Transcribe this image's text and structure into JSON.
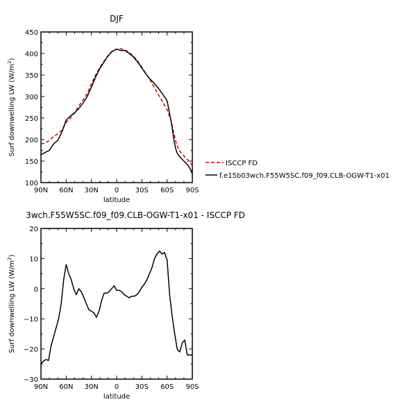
{
  "chart_data": [
    {
      "type": "line",
      "title": "DJF",
      "xlabel": "latitude",
      "ylabel_main": "Surf downwelling LW (W/m",
      "ylabel_sup": "2",
      "ylabel_tail": ")",
      "xlim": [
        -90,
        90
      ],
      "ylim": [
        100,
        450
      ],
      "xticks": [
        -90,
        -60,
        -30,
        0,
        30,
        60,
        90
      ],
      "xtick_labels": [
        "90N",
        "60N",
        "30N",
        "0",
        "30S",
        "60S",
        "90S"
      ],
      "yticks": [
        100,
        150,
        200,
        250,
        300,
        350,
        400,
        450
      ],
      "ytick_labels": [
        "100",
        "150",
        "200",
        "250",
        "300",
        "350",
        "400",
        "450"
      ],
      "legend_position": "right",
      "series": [
        {
          "name": "ISCCP FD",
          "color": "#cc0000",
          "dash": "dashed",
          "x": [
            -90,
            -85,
            -80,
            -75,
            -70,
            -65,
            -60,
            -55,
            -50,
            -45,
            -40,
            -35,
            -30,
            -25,
            -20,
            -15,
            -10,
            -5,
            0,
            5,
            10,
            15,
            20,
            25,
            30,
            35,
            40,
            45,
            50,
            55,
            60,
            65,
            68,
            70,
            72,
            75,
            80,
            85,
            88,
            90
          ],
          "y": [
            190,
            192,
            198,
            207,
            213,
            222,
            240,
            250,
            262,
            278,
            292,
            307,
            330,
            350,
            368,
            382,
            396,
            406,
            410,
            411,
            408,
            402,
            394,
            382,
            368,
            352,
            338,
            320,
            303,
            286,
            270,
            242,
            215,
            198,
            185,
            173,
            162,
            152,
            145,
            140
          ]
        },
        {
          "name": "f.e15b03wch.F55W5SC.f09_f09.CLB-OGW-T1-x01",
          "color": "#000000",
          "dash": "solid",
          "x": [
            -90,
            -85,
            -80,
            -75,
            -70,
            -65,
            -60,
            -55,
            -50,
            -45,
            -40,
            -35,
            -30,
            -25,
            -20,
            -15,
            -10,
            -5,
            0,
            5,
            10,
            15,
            20,
            25,
            30,
            35,
            40,
            45,
            50,
            55,
            60,
            65,
            68,
            70,
            72,
            75,
            80,
            85,
            88,
            90
          ],
          "y": [
            165,
            170,
            175,
            190,
            198,
            218,
            245,
            255,
            262,
            272,
            285,
            300,
            322,
            345,
            365,
            380,
            395,
            405,
            410,
            407,
            407,
            400,
            392,
            380,
            366,
            352,
            340,
            330,
            318,
            305,
            290,
            240,
            200,
            180,
            168,
            160,
            150,
            140,
            130,
            120
          ]
        }
      ]
    },
    {
      "type": "line",
      "title": "3wch.F55W5SC.f09_f09.CLB-OGW-T1-x01 - ISCCP FD",
      "xlabel": "latitude",
      "ylabel_main": "Surf downwelling LW (W/m",
      "ylabel_sup": "2",
      "ylabel_tail": ")",
      "xlim": [
        -90,
        90
      ],
      "ylim": [
        -30,
        20
      ],
      "xticks": [
        -90,
        -60,
        -30,
        0,
        30,
        60,
        90
      ],
      "xtick_labels": [
        "90N",
        "60N",
        "30N",
        "0",
        "30S",
        "60S",
        "90S"
      ],
      "yticks": [
        -30,
        -20,
        -10,
        0,
        10,
        20
      ],
      "ytick_labels": [
        "−30",
        "−20",
        "−10",
        "0",
        "10",
        "20"
      ],
      "series": [
        {
          "color": "#000000",
          "dash": "solid",
          "x": [
            -90,
            -87,
            -84,
            -81,
            -78,
            -75,
            -72,
            -69,
            -66,
            -63,
            -60,
            -57,
            -54,
            -51,
            -48,
            -45,
            -42,
            -39,
            -36,
            -33,
            -30,
            -27,
            -24,
            -21,
            -18,
            -15,
            -12,
            -9,
            -6,
            -3,
            0,
            3,
            6,
            9,
            12,
            15,
            18,
            21,
            24,
            27,
            30,
            33,
            36,
            39,
            42,
            45,
            48,
            51,
            54,
            57,
            60,
            63,
            66,
            69,
            72,
            75,
            78,
            81,
            84,
            87,
            90
          ],
          "y": [
            -25,
            -24,
            -23.5,
            -23.8,
            -19,
            -16,
            -13,
            -10,
            -5,
            3,
            8,
            5,
            3,
            0,
            -2,
            0,
            -1,
            -3,
            -5,
            -7,
            -7.5,
            -8,
            -9.5,
            -7.5,
            -4,
            -1.5,
            -1.5,
            -1,
            0,
            1,
            -0.5,
            -0.5,
            -1,
            -2,
            -2.5,
            -3,
            -2.5,
            -2.5,
            -2,
            -1,
            0.5,
            1.5,
            3,
            5,
            7,
            10,
            11.5,
            12.5,
            11.5,
            12,
            9.5,
            -2,
            -9,
            -15,
            -20,
            -21,
            -18,
            -17,
            -22,
            -22,
            -22
          ]
        }
      ]
    }
  ]
}
